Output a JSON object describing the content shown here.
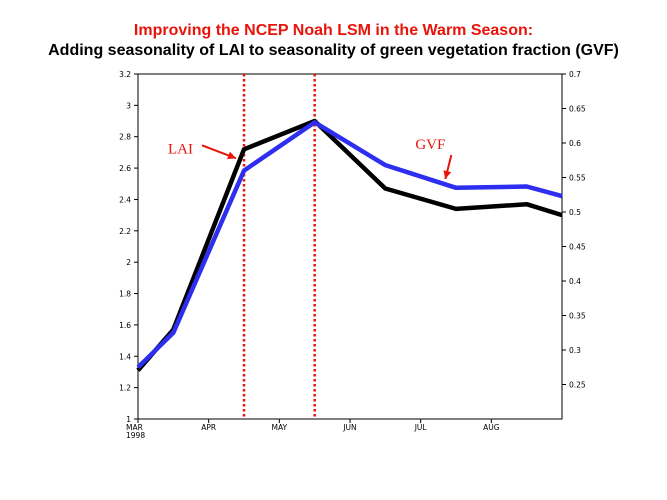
{
  "title_line1": "Improving the NCEP Noah LSM in the Warm Season:",
  "title_line2": "Adding seasonality of LAI to seasonality of green vegetation fraction (GVF)",
  "chart_data": {
    "type": "line",
    "x": [
      0,
      0.5,
      1.5,
      2.5,
      3.5,
      4.5,
      5.5,
      6
    ],
    "xlim": [
      0,
      6
    ],
    "x_ticks": [
      {
        "pos": 0,
        "label": "MAR",
        "sublabel": "1998"
      },
      {
        "pos": 1,
        "label": "APR"
      },
      {
        "pos": 2,
        "label": "MAY"
      },
      {
        "pos": 3,
        "label": "JUN"
      },
      {
        "pos": 4,
        "label": "JUL"
      },
      {
        "pos": 5,
        "label": "AUG"
      }
    ],
    "left_axis": {
      "ylim": [
        1.0,
        3.2
      ],
      "ticks": [
        "1",
        "1.2",
        "1.4",
        "1.6",
        "1.8",
        "2",
        "2.2",
        "2.4",
        "2.6",
        "2.8",
        "3",
        "3.2"
      ]
    },
    "right_axis": {
      "ylim": [
        0.2,
        0.7
      ],
      "ticks": [
        "0.25",
        "0.3",
        "0.35",
        "0.4",
        "0.45",
        "0.5",
        "0.55",
        "0.6",
        "0.65",
        "0.7"
      ]
    },
    "series": [
      {
        "name": "LAI",
        "axis": "left",
        "color": "#000000",
        "values": [
          1.31,
          1.57,
          2.72,
          2.9,
          2.47,
          2.34,
          2.37,
          2.3
        ]
      },
      {
        "name": "GVF",
        "axis": "right",
        "color": "#2e2ef0",
        "values": [
          0.275,
          0.325,
          0.56,
          0.63,
          0.568,
          0.535,
          0.537,
          0.523
        ]
      }
    ],
    "vertical_markers": [
      1.5,
      2.5
    ],
    "marker_color": "#e8140a",
    "annotations": [
      {
        "text": "LAI",
        "target_x": 1.5,
        "target_y": 2.72,
        "axis": "left"
      },
      {
        "text": "GVF",
        "target_x": 3.5,
        "target_y": 0.545,
        "axis": "right"
      }
    ]
  }
}
